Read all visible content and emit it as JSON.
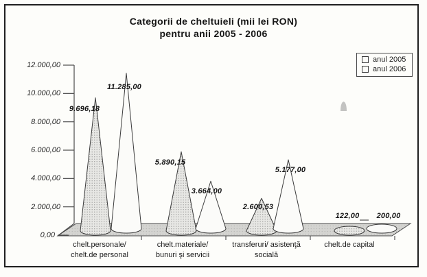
{
  "title": {
    "line1": "Categorii de cheltuieli (mii lei RON)",
    "line2": "pentru anii 2005 - 2006"
  },
  "legend": {
    "items": [
      {
        "label": "anul 2005"
      },
      {
        "label": "anul 2006"
      }
    ]
  },
  "y_axis": {
    "tick_labels": [
      "12.000,00",
      "10.000,00",
      "8.000,00",
      "6.000,00",
      "4.000,00",
      "2.000,00",
      "0,00"
    ],
    "min": 0,
    "max": 12000,
    "step": 2000
  },
  "categories": [
    {
      "lines": [
        "chelt.personale/",
        "chelt.de personal"
      ]
    },
    {
      "lines": [
        "chelt.materiale/",
        "bunuri şi servicii"
      ]
    },
    {
      "lines": [
        "transferuri/ asistenţă",
        "socială"
      ]
    },
    {
      "lines": [
        "chelt.de capital"
      ]
    }
  ],
  "chart_data": {
    "type": "bar",
    "subtype": "3d-cone",
    "title": "Categorii de cheltuieli (mii lei RON) pentru anii 2005 - 2006",
    "categories": [
      "chelt.personale/ chelt.de personal",
      "chelt.materiale/ bunuri şi servicii",
      "transferuri/ asistenţă socială",
      "chelt.de capital"
    ],
    "series": [
      {
        "name": "anul 2005",
        "values": [
          9696.18,
          5890.15,
          2600.53,
          122.0
        ],
        "value_labels": [
          "9.696,18",
          "5.890,15",
          "2.600,53",
          "122,00"
        ],
        "fill": "#e7e7e4"
      },
      {
        "name": "anul 2006",
        "values": [
          11285.0,
          3664.0,
          5177.0,
          200.0
        ],
        "value_labels": [
          "11.285,00",
          "3.664,00",
          "5.177,00",
          "200,00"
        ],
        "fill": "#fbfbf9"
      }
    ],
    "ylabel": "",
    "xlabel": "",
    "ylim": [
      0,
      12000
    ],
    "ytick_step": 2000,
    "grid": false,
    "legend_position": "top-right",
    "colors": {
      "outline": "#3a3a3a",
      "floor": "#d4d4d1",
      "text": "#1c1c1c"
    }
  }
}
